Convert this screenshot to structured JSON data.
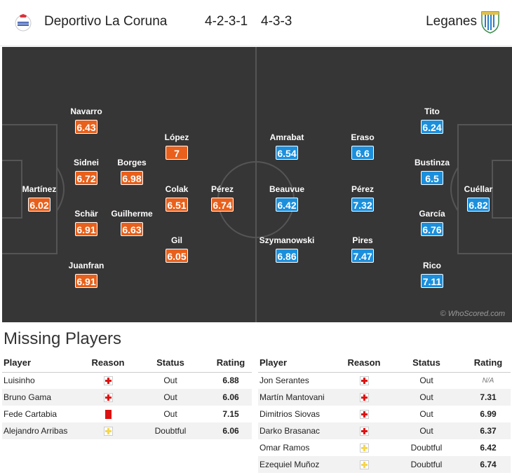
{
  "header": {
    "home_team": "Deportivo La Coruna",
    "home_formation": "4-2-3-1",
    "away_formation": "4-3-3",
    "away_team": "Leganes"
  },
  "pitch": {
    "watermark": "© WhoScored.com",
    "home_players": [
      {
        "name": "Martínez",
        "rating": "6.02"
      },
      {
        "name": "Navarro",
        "rating": "6.43"
      },
      {
        "name": "Sidnei",
        "rating": "6.72"
      },
      {
        "name": "Schär",
        "rating": "6.91"
      },
      {
        "name": "Juanfran",
        "rating": "6.91"
      },
      {
        "name": "Borges",
        "rating": "6.98"
      },
      {
        "name": "Guilherme",
        "rating": "6.63"
      },
      {
        "name": "López",
        "rating": "7"
      },
      {
        "name": "Colak",
        "rating": "6.51"
      },
      {
        "name": "Gil",
        "rating": "6.05"
      },
      {
        "name": "Pérez",
        "rating": "6.74"
      }
    ],
    "away_players": [
      {
        "name": "Amrabat",
        "rating": "6.54"
      },
      {
        "name": "Beauvue",
        "rating": "6.42"
      },
      {
        "name": "Szymanowski",
        "rating": "6.86"
      },
      {
        "name": "Eraso",
        "rating": "6.6"
      },
      {
        "name": "Pérez",
        "rating": "7.32"
      },
      {
        "name": "Pires",
        "rating": "7.47"
      },
      {
        "name": "Tito",
        "rating": "6.24"
      },
      {
        "name": "Bustinza",
        "rating": "6.5"
      },
      {
        "name": "García",
        "rating": "6.76"
      },
      {
        "name": "Rico",
        "rating": "7.11"
      },
      {
        "name": "Cuéllar",
        "rating": "6.82"
      }
    ]
  },
  "missing": {
    "title": "Missing Players",
    "columns": [
      "Player",
      "Reason",
      "Status",
      "Rating"
    ],
    "home": [
      {
        "player": "Luisinho",
        "reason": "injury",
        "status": "Out",
        "rating": "6.88"
      },
      {
        "player": "Bruno Gama",
        "reason": "injury",
        "status": "Out",
        "rating": "6.06"
      },
      {
        "player": "Fede Cartabia",
        "reason": "red-card",
        "status": "Out",
        "rating": "7.15"
      },
      {
        "player": "Alejandro Arribas",
        "reason": "doubtful",
        "status": "Doubtful",
        "rating": "6.06"
      }
    ],
    "away": [
      {
        "player": "Jon Serantes",
        "reason": "injury",
        "status": "Out",
        "rating": "N/A"
      },
      {
        "player": "Martín Mantovani",
        "reason": "injury",
        "status": "Out",
        "rating": "7.31"
      },
      {
        "player": "Dimitrios Siovas",
        "reason": "injury",
        "status": "Out",
        "rating": "6.99"
      },
      {
        "player": "Darko Brasanac",
        "reason": "injury",
        "status": "Out",
        "rating": "6.37"
      },
      {
        "player": "Omar Ramos",
        "reason": "doubtful",
        "status": "Doubtful",
        "rating": "6.42"
      },
      {
        "player": "Ezequiel Muñoz",
        "reason": "doubtful",
        "status": "Doubtful",
        "rating": "6.74"
      }
    ]
  },
  "colors": {
    "home_rating": "#e8601b",
    "away_rating": "#1b8fdc",
    "pitch": "#363636"
  }
}
